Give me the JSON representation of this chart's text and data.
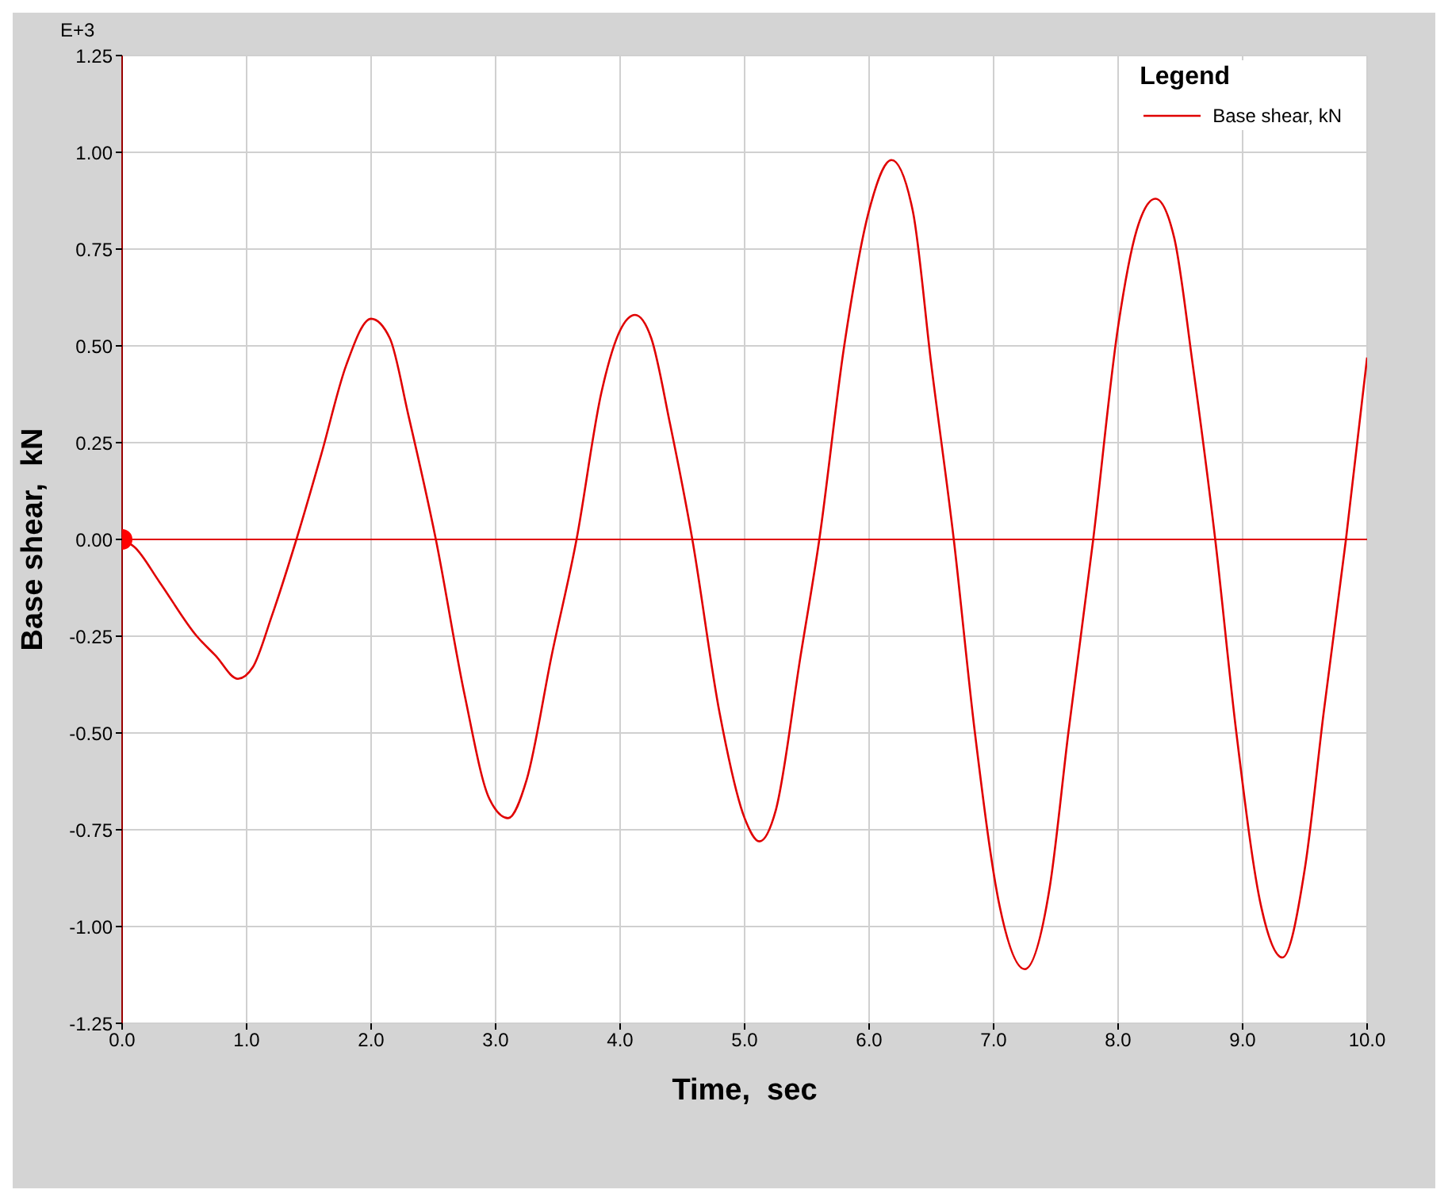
{
  "chart_data": {
    "type": "line",
    "xlabel": "Time,  sec",
    "ylabel": "Base shear,  kN",
    "legend_title": "Legend",
    "legend": "top right",
    "grid": true,
    "marker": "none",
    "line_style": "solid",
    "annotations": [
      "E+3"
    ],
    "xlim": [
      0,
      10
    ],
    "xticks": [
      {
        "value": 0,
        "label": "0.0"
      },
      {
        "value": 1,
        "label": "1.0"
      },
      {
        "value": 2,
        "label": "2.0"
      },
      {
        "value": 3,
        "label": "3.0"
      },
      {
        "value": 4,
        "label": "4.0"
      },
      {
        "value": 5,
        "label": "5.0"
      },
      {
        "value": 6,
        "label": "6.0"
      },
      {
        "value": 7,
        "label": "7.0"
      },
      {
        "value": 8,
        "label": "8.0"
      },
      {
        "value": 9,
        "label": "9.0"
      },
      {
        "value": 10,
        "label": "10.0"
      }
    ],
    "ylim": [
      -1.25,
      1.25
    ],
    "yticks": [
      {
        "value": -1.25,
        "label": "-1.25"
      },
      {
        "value": -1,
        "label": "-1.00"
      },
      {
        "value": -0.75,
        "label": "-0.75"
      },
      {
        "value": -0.5,
        "label": "-0.50"
      },
      {
        "value": -0.25,
        "label": "-0.25"
      },
      {
        "value": 0,
        "label": "0.00"
      },
      {
        "value": 0.25,
        "label": "0.25"
      },
      {
        "value": 0.5,
        "label": "0.50"
      },
      {
        "value": 0.75,
        "label": "0.75"
      },
      {
        "value": 1,
        "label": "1.00"
      },
      {
        "value": 1.25,
        "label": "1.25"
      }
    ],
    "ref_lines": [
      {
        "axis": "y",
        "value": 0,
        "color": "#e00000"
      }
    ],
    "series": [
      {
        "name": "Base shear, kN",
        "color": "#e00000",
        "x": [
          0,
          0.1,
          0.3,
          0.6,
          0.75,
          0.93,
          1.05,
          1.2,
          1.4,
          1.6,
          1.8,
          2.0,
          2.15,
          2.3,
          2.52,
          2.75,
          2.95,
          3.1,
          3.25,
          3.45,
          3.65,
          3.85,
          4.0,
          4.12,
          4.25,
          4.4,
          4.58,
          4.8,
          5.0,
          5.12,
          5.25,
          5.45,
          5.6,
          5.8,
          6.0,
          6.18,
          6.35,
          6.5,
          6.68,
          6.85,
          7.05,
          7.25,
          7.45,
          7.6,
          7.8,
          8.0,
          8.15,
          8.3,
          8.45,
          8.6,
          8.78,
          8.95,
          9.15,
          9.32,
          9.5,
          9.65,
          9.83,
          10.0
        ],
        "values": [
          0,
          -0.02,
          -0.11,
          -0.25,
          -0.3,
          -0.36,
          -0.33,
          -0.2,
          0,
          0.22,
          0.45,
          0.57,
          0.52,
          0.32,
          0,
          -0.4,
          -0.67,
          -0.72,
          -0.62,
          -0.3,
          0,
          0.38,
          0.54,
          0.58,
          0.52,
          0.3,
          0,
          -0.45,
          -0.72,
          -0.78,
          -0.7,
          -0.3,
          0,
          0.5,
          0.85,
          0.98,
          0.85,
          0.45,
          0,
          -0.5,
          -0.95,
          -1.11,
          -0.9,
          -0.5,
          0,
          0.55,
          0.8,
          0.88,
          0.78,
          0.45,
          0,
          -0.5,
          -0.95,
          -1.08,
          -0.85,
          -0.45,
          0,
          0.47
        ]
      },
      {
        "type": "scatter",
        "color": "#ff0000",
        "marker": "circle",
        "x": [
          0
        ],
        "values": [
          0
        ]
      }
    ]
  }
}
